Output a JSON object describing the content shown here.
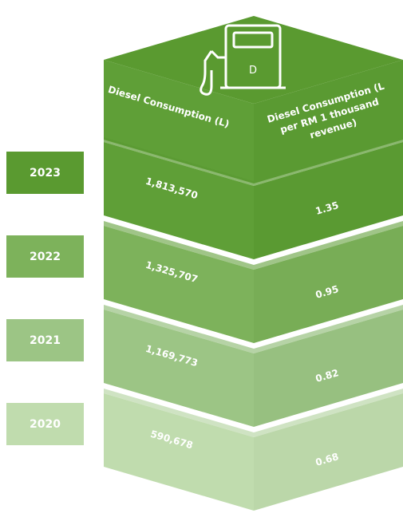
{
  "header": {
    "icon_label": "D",
    "columns": [
      "Diesel Consumption (L)",
      "Diesel Consumption (L per RM 1 thousand revenue)"
    ]
  },
  "rows": [
    {
      "year": "2023",
      "consumption": "1,813,570",
      "intensity": "1.35"
    },
    {
      "year": "2022",
      "consumption": "1,325,707",
      "intensity": "0.95"
    },
    {
      "year": "2021",
      "consumption": "1,169,773",
      "intensity": "0.82"
    },
    {
      "year": "2020",
      "consumption": "590,678",
      "intensity": "0.68"
    }
  ]
}
